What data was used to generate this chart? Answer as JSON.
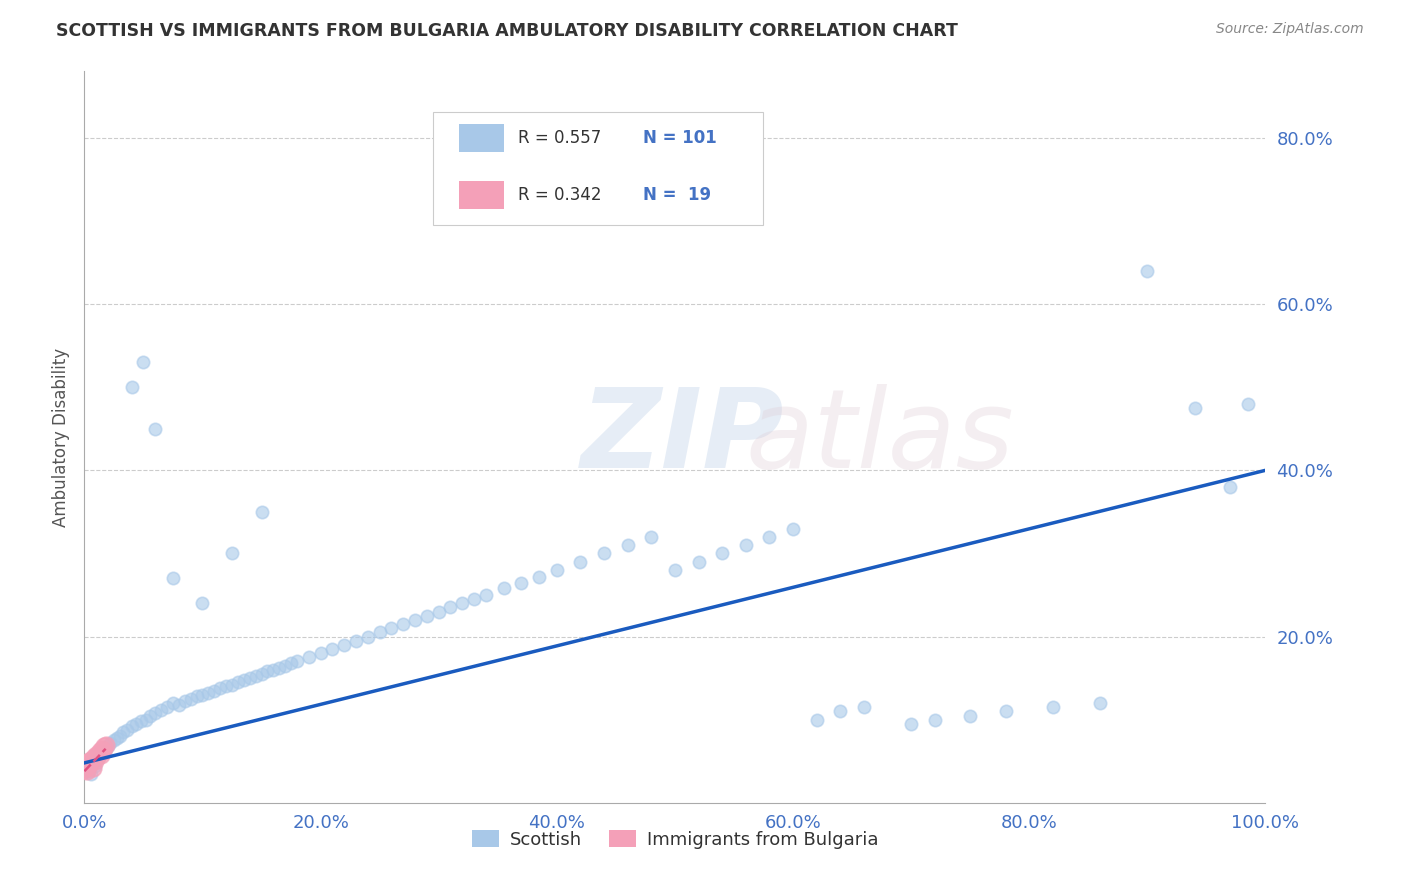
{
  "title": "SCOTTISH VS IMMIGRANTS FROM BULGARIA AMBULATORY DISABILITY CORRELATION CHART",
  "source": "Source: ZipAtlas.com",
  "xlabel": "",
  "ylabel": "Ambulatory Disability",
  "xlim": [
    0,
    1.0
  ],
  "ylim": [
    0,
    0.88
  ],
  "ytick_vals": [
    0.2,
    0.4,
    0.6,
    0.8
  ],
  "ytick_labels": [
    "20.0%",
    "40.0%",
    "60.0%",
    "80.0%"
  ],
  "xtick_vals": [
    0.0,
    0.2,
    0.4,
    0.6,
    0.8,
    1.0
  ],
  "xtick_labels": [
    "0.0%",
    "20.0%",
    "40.0%",
    "60.0%",
    "80.0%",
    "100.0%"
  ],
  "color_scottish": "#a8c8e8",
  "color_bulgaria": "#f4a0b8",
  "color_line_scottish": "#1a5bbf",
  "color_line_bulgaria": "#e05080",
  "marker_size": 80,
  "background_color": "#ffffff",
  "scottish_x": [
    0.001,
    0.002,
    0.003,
    0.004,
    0.005,
    0.006,
    0.007,
    0.008,
    0.009,
    0.01,
    0.012,
    0.014,
    0.016,
    0.018,
    0.02,
    0.022,
    0.025,
    0.028,
    0.03,
    0.033,
    0.036,
    0.04,
    0.044,
    0.048,
    0.052,
    0.056,
    0.06,
    0.065,
    0.07,
    0.075,
    0.08,
    0.085,
    0.09,
    0.095,
    0.1,
    0.105,
    0.11,
    0.115,
    0.12,
    0.125,
    0.13,
    0.135,
    0.14,
    0.145,
    0.15,
    0.155,
    0.16,
    0.165,
    0.17,
    0.175,
    0.18,
    0.19,
    0.2,
    0.21,
    0.22,
    0.23,
    0.24,
    0.25,
    0.26,
    0.27,
    0.28,
    0.29,
    0.3,
    0.31,
    0.32,
    0.33,
    0.34,
    0.355,
    0.37,
    0.385,
    0.4,
    0.42,
    0.44,
    0.46,
    0.48,
    0.5,
    0.52,
    0.54,
    0.56,
    0.58,
    0.6,
    0.62,
    0.64,
    0.66,
    0.7,
    0.72,
    0.75,
    0.78,
    0.82,
    0.86,
    0.9,
    0.94,
    0.97,
    0.985,
    0.05,
    0.075,
    0.1,
    0.125,
    0.15,
    0.04,
    0.06
  ],
  "scottish_y": [
    0.04,
    0.042,
    0.045,
    0.038,
    0.05,
    0.035,
    0.048,
    0.052,
    0.044,
    0.058,
    0.055,
    0.062,
    0.06,
    0.065,
    0.068,
    0.072,
    0.075,
    0.078,
    0.08,
    0.085,
    0.088,
    0.092,
    0.095,
    0.098,
    0.1,
    0.105,
    0.108,
    0.112,
    0.115,
    0.12,
    0.118,
    0.122,
    0.125,
    0.128,
    0.13,
    0.132,
    0.135,
    0.138,
    0.14,
    0.142,
    0.145,
    0.148,
    0.15,
    0.152,
    0.155,
    0.158,
    0.16,
    0.162,
    0.165,
    0.168,
    0.17,
    0.175,
    0.18,
    0.185,
    0.19,
    0.195,
    0.2,
    0.205,
    0.21,
    0.215,
    0.22,
    0.225,
    0.23,
    0.235,
    0.24,
    0.245,
    0.25,
    0.258,
    0.265,
    0.272,
    0.28,
    0.29,
    0.3,
    0.31,
    0.32,
    0.28,
    0.29,
    0.3,
    0.31,
    0.32,
    0.33,
    0.1,
    0.11,
    0.115,
    0.095,
    0.1,
    0.105,
    0.11,
    0.115,
    0.12,
    0.64,
    0.475,
    0.38,
    0.48,
    0.53,
    0.27,
    0.24,
    0.3,
    0.35,
    0.5,
    0.45
  ],
  "bulgaria_x": [
    0.0,
    0.001,
    0.002,
    0.003,
    0.004,
    0.005,
    0.006,
    0.007,
    0.008,
    0.009,
    0.01,
    0.011,
    0.012,
    0.013,
    0.014,
    0.015,
    0.016,
    0.017,
    0.018
  ],
  "bulgaria_y": [
    0.04,
    0.042,
    0.038,
    0.045,
    0.05,
    0.048,
    0.052,
    0.042,
    0.055,
    0.05,
    0.058,
    0.055,
    0.06,
    0.062,
    0.058,
    0.065,
    0.062,
    0.068,
    0.07
  ],
  "trendline_scottish_x0": 0.0,
  "trendline_scottish_y0": 0.048,
  "trendline_scottish_x1": 1.0,
  "trendline_scottish_y1": 0.4,
  "trendline_bulgaria_x0": 0.0,
  "trendline_bulgaria_y0": 0.038,
  "trendline_bulgaria_x1": 0.018,
  "trendline_bulgaria_y1": 0.065
}
